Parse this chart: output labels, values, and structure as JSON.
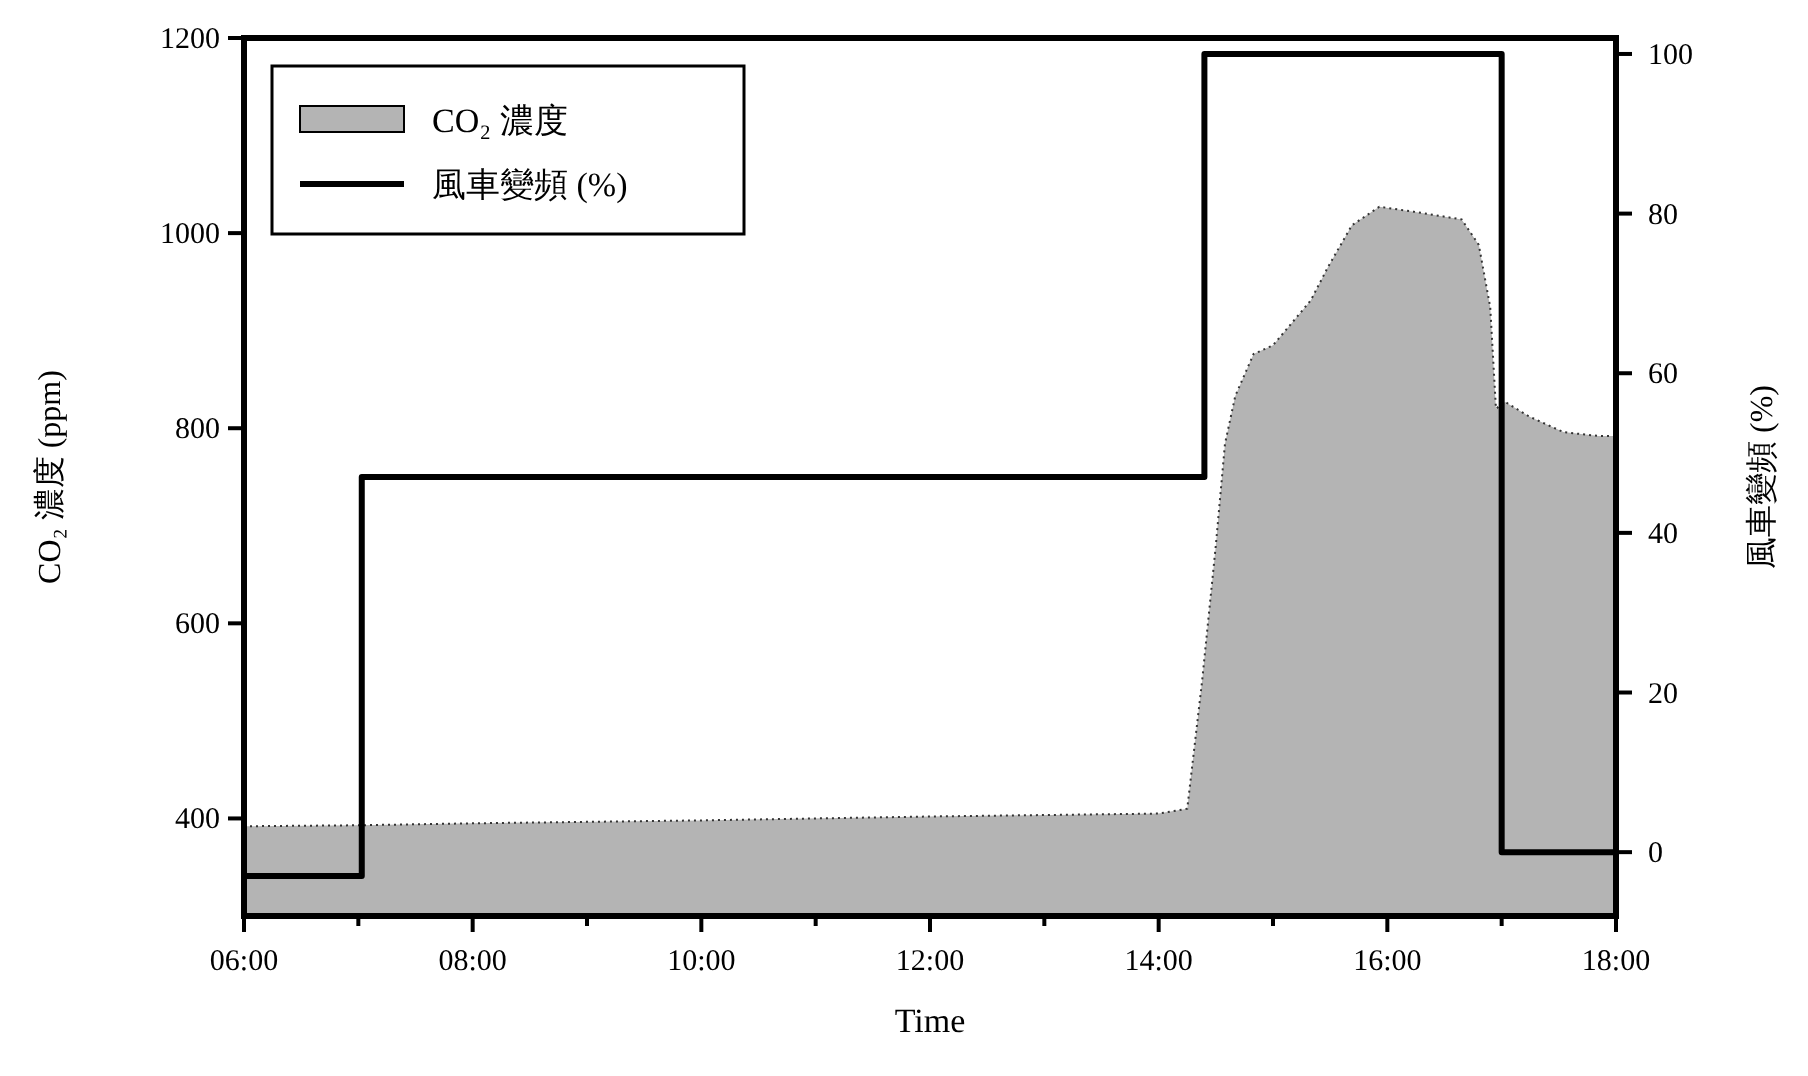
{
  "chart_data": {
    "type": "area",
    "xlabel": "Time",
    "ylabel": "CO₂ 濃度 (ppm)",
    "y2label": "風車變頻 (%)",
    "xlim": [
      6,
      18
    ],
    "xticks": [
      {
        "value": 6,
        "label": "06:00"
      },
      {
        "value": 7,
        "label": null
      },
      {
        "value": 8,
        "label": "08:00"
      },
      {
        "value": 9,
        "label": null
      },
      {
        "value": 10,
        "label": "10:00"
      },
      {
        "value": 11,
        "label": null
      },
      {
        "value": 12,
        "label": "12:00"
      },
      {
        "value": 13,
        "label": null
      },
      {
        "value": 14,
        "label": "14:00"
      },
      {
        "value": 15,
        "label": null
      },
      {
        "value": 16,
        "label": "16:00"
      },
      {
        "value": 17,
        "label": null
      },
      {
        "value": 18,
        "label": "18:00"
      }
    ],
    "ylim": [
      300,
      1200
    ],
    "yticks": [
      400,
      600,
      800,
      1000,
      1200
    ],
    "y2lim": [
      -8,
      102
    ],
    "y2ticks": [
      0,
      20,
      40,
      60,
      80,
      100
    ],
    "legend": "top left",
    "grid": false,
    "series": [
      {
        "name": "CO₂ 濃度",
        "color": "#b4b4b4",
        "x": [
          6,
          7,
          8,
          10,
          12,
          14,
          14.25,
          14.38,
          14.5,
          14.58,
          14.67,
          14.83,
          15.0,
          15.18,
          15.33,
          15.48,
          15.69,
          15.93,
          16.23,
          16.65,
          16.8,
          16.9,
          16.95,
          17.03,
          17.24,
          17.54,
          17.85,
          18
        ],
        "values": [
          392,
          393,
          395,
          398,
          402,
          405,
          410,
          541,
          680,
          784,
          833,
          876,
          885,
          910,
          931,
          965,
          1008,
          1027,
          1022,
          1014,
          988,
          924,
          820,
          827,
          812,
          796,
          792,
          792
        ]
      },
      {
        "name": "風車變頻 (%)",
        "type": "step",
        "axis": "y2",
        "color": "#000000",
        "x": [
          6,
          7.03,
          14.4,
          17.0,
          18
        ],
        "values": [
          -3,
          47,
          100,
          0,
          0
        ]
      }
    ]
  }
}
